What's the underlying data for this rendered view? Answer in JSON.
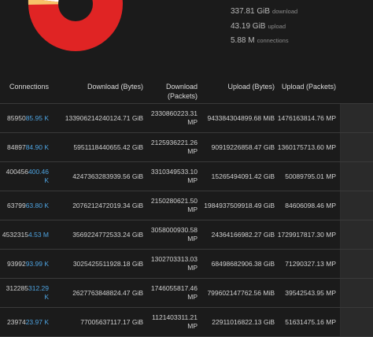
{
  "summary": {
    "download": {
      "value": "337.81 GiB",
      "label": "download"
    },
    "upload": {
      "value": "43.19 GiB",
      "label": "upload"
    },
    "connections": {
      "value": "5.88 M",
      "label": "connections"
    }
  },
  "colors": {
    "donut_main": "#e02424",
    "donut_slices": [
      "#f07a1a",
      "#f4a43a",
      "#f7c46a",
      "#fbe3b0",
      "#ffffff"
    ],
    "accent": "#4ea3e0"
  },
  "table": {
    "headers": [
      "Connections",
      "Download (Bytes)",
      "Download (Packets)",
      "Upload (Bytes)",
      "Upload (Packets)"
    ],
    "rows": [
      {
        "conn_raw": "85950",
        "conn_abbr": "85.95 K",
        "dl_bytes": "1339062142401​24.71 GiB",
        "dl_packets": "2330860223.31 MP",
        "ul_bytes": "943384304899.68 MiB",
        "ul_packets": "1476163814.76 MP"
      },
      {
        "conn_raw": "84897",
        "conn_abbr": "84.90 K",
        "dl_bytes": "5951118440655.42 GiB",
        "dl_packets": "2125936221.26 MP",
        "ul_bytes": "90919226858.47 GiB",
        "ul_packets": "1360175713.60 MP"
      },
      {
        "conn_raw": "400456",
        "conn_abbr": "400.46 K",
        "dl_bytes": "4247363283939.56 GiB",
        "dl_packets": "3310349533.10 MP",
        "ul_bytes": "15265494091.42 GiB",
        "ul_packets": "50089795.01 MP"
      },
      {
        "conn_raw": "63799",
        "conn_abbr": "63.80 K",
        "dl_bytes": "2076212472019.34 GiB",
        "dl_packets": "2150280621.50 MP",
        "ul_bytes": "1984937509918.49 GiB",
        "ul_packets": "84606098.46 MP"
      },
      {
        "conn_raw": "4532315",
        "conn_abbr": "4.53 M",
        "dl_bytes": "3569224772533.24 GiB",
        "dl_packets": "3058000930.58 MP",
        "ul_bytes": "24364166982.27 GiB",
        "ul_packets": "1729917817.30 MP"
      },
      {
        "conn_raw": "93992",
        "conn_abbr": "93.99 K",
        "dl_bytes": "3025425511928.18 GiB",
        "dl_packets": "1302703313.03 MP",
        "ul_bytes": "68498682906.38 GiB",
        "ul_packets": "71290327.13 MP"
      },
      {
        "conn_raw": "312285",
        "conn_abbr": "312.29 K",
        "dl_bytes": "2627763848824.47 GiB",
        "dl_packets": "1746055817.46 MP",
        "ul_bytes": "799602147762.56 MiB",
        "ul_packets": "39542543.95 MP"
      },
      {
        "conn_raw": "23974",
        "conn_abbr": "23.97 K",
        "dl_bytes": "77005637117.17 GiB",
        "dl_packets": "1121403311.21 MP",
        "ul_bytes": "22911016822.13 GiB",
        "ul_packets": "51631475.16 MP"
      }
    ]
  }
}
